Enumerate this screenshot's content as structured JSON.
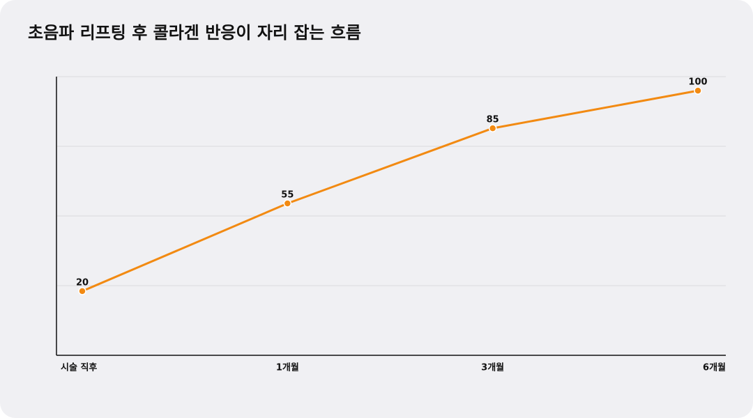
{
  "chart_data": {
    "type": "line",
    "title": "초음파 리프팅 후 콜라겐 반응이 자리 잡는 흐름",
    "categories": [
      "시술 직후",
      "1개월",
      "3개월",
      "6개월"
    ],
    "values": [
      20,
      55,
      85,
      100
    ],
    "color": "#f28a12",
    "ylim": [
      -5.6,
      105.6
    ],
    "yticks": [
      22.2,
      50,
      77.8,
      105.6
    ],
    "grid": true
  }
}
